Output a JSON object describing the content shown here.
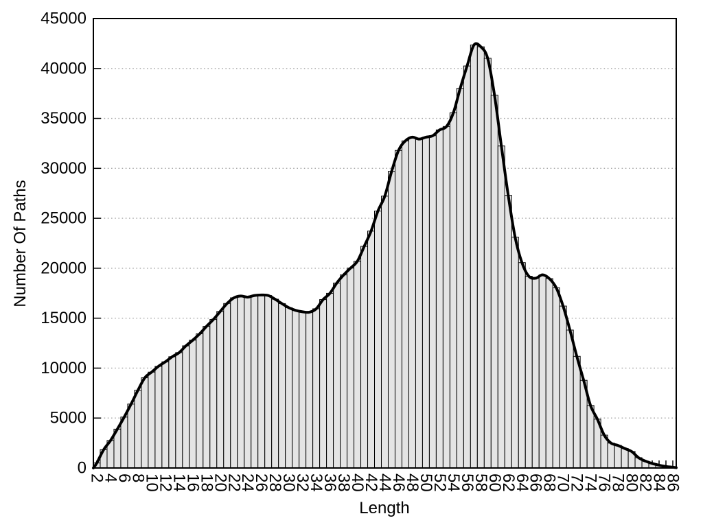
{
  "chart_data": {
    "type": "bar",
    "title": "",
    "xlabel": "Length",
    "ylabel": "Number Of Paths",
    "x": [
      2,
      3,
      4,
      5,
      6,
      7,
      8,
      9,
      10,
      11,
      12,
      13,
      14,
      15,
      16,
      17,
      18,
      19,
      20,
      21,
      22,
      23,
      24,
      25,
      26,
      27,
      28,
      29,
      30,
      31,
      32,
      33,
      34,
      35,
      36,
      37,
      38,
      39,
      40,
      41,
      42,
      43,
      44,
      45,
      46,
      47,
      48,
      49,
      50,
      51,
      52,
      53,
      54,
      55,
      56,
      57,
      58,
      59,
      60,
      61,
      62,
      63,
      64,
      65,
      66,
      67,
      68,
      69,
      70,
      71,
      72,
      73,
      74,
      75,
      76,
      77,
      78,
      79,
      80,
      81,
      82,
      83,
      84,
      85,
      86
    ],
    "values": [
      500,
      1830,
      2750,
      3890,
      5100,
      6400,
      7780,
      9030,
      9600,
      10180,
      10630,
      11140,
      11550,
      12230,
      12800,
      13430,
      14180,
      14870,
      15670,
      16470,
      17040,
      17220,
      17110,
      17270,
      17320,
      17270,
      16900,
      16460,
      16050,
      15780,
      15640,
      15600,
      15940,
      16860,
      17490,
      18520,
      19330,
      20010,
      20700,
      22190,
      23720,
      25730,
      27220,
      29700,
      31790,
      32750,
      33120,
      32930,
      33120,
      33270,
      33850,
      34190,
      35560,
      38010,
      40250,
      42350,
      42170,
      41020,
      37320,
      32240,
      27300,
      23120,
      20560,
      19200,
      19000,
      19340,
      18960,
      18040,
      16210,
      13810,
      11180,
      8780,
      6260,
      4890,
      3290,
      2490,
      2260,
      1950,
      1650,
      1030,
      690,
      450,
      280,
      150,
      80
    ],
    "overlay_line": "smooth cspline through bar tops",
    "xlim": [
      1.5,
      86.5
    ],
    "ylim": [
      0,
      45000
    ],
    "x_tick_step": 2,
    "minor_x_tick_step": 1,
    "x_tick_labels": [
      "2",
      "4",
      "6",
      "8",
      "10",
      "12",
      "14",
      "16",
      "18",
      "20",
      "22",
      "24",
      "26",
      "28",
      "30",
      "32",
      "34",
      "36",
      "38",
      "40",
      "42",
      "44",
      "46",
      "48",
      "50",
      "52",
      "54",
      "56",
      "58",
      "60",
      "62",
      "64",
      "66",
      "68",
      "70",
      "72",
      "74",
      "76",
      "78",
      "80",
      "82",
      "84",
      "86"
    ],
    "y_ticks": [
      0,
      5000,
      10000,
      15000,
      20000,
      25000,
      30000,
      35000,
      40000,
      45000
    ],
    "y_tick_labels": [
      "0",
      "5000",
      "10000",
      "15000",
      "20000",
      "25000",
      "30000",
      "35000",
      "40000",
      "45000"
    ],
    "grid": "horizontal-dotted",
    "legend": "none",
    "colors": {
      "bar_fill": "#e4e4e4",
      "bar_stroke": "#000000",
      "line": "#000000",
      "grid": "#a6a6a6",
      "background": "#ffffff",
      "text": "#000000"
    }
  }
}
